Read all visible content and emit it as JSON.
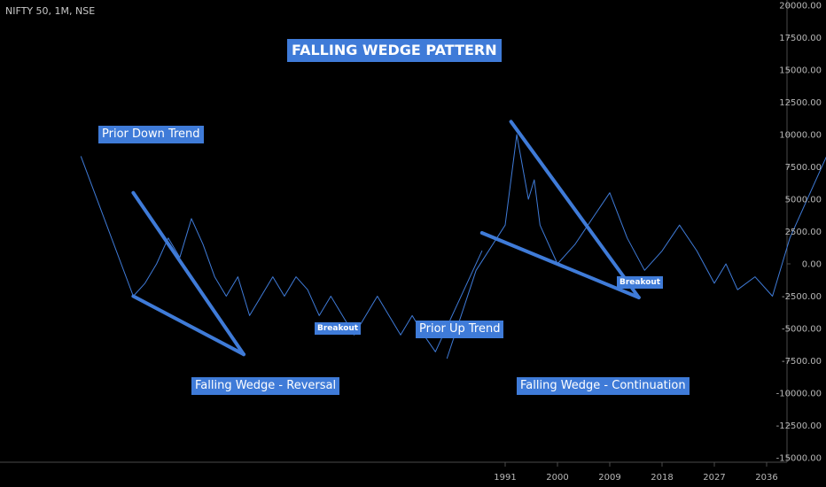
{
  "header": {
    "symbol": "NIFTY 50, 1M, NSE"
  },
  "annotations": {
    "title": "FALLING WEDGE PATTERN",
    "prior_down": "Prior Down Trend",
    "prior_up": "Prior Up Trend",
    "breakout_left": "Breakout",
    "breakout_right": "Breakout",
    "reversal": "Falling Wedge - Reversal",
    "continuation": "Falling Wedge - Continuation"
  },
  "colors": {
    "background": "#000000",
    "line": "#3f7bd8",
    "label_bg": "#3f7bd8",
    "axis_text": "#b8b8b8"
  },
  "chart_data": {
    "type": "line",
    "title": "FALLING WEDGE PATTERN",
    "ylim": [
      -15000,
      20000
    ],
    "y_ticks": [
      "20000.00",
      "17500.00",
      "15000.00",
      "12500.00",
      "10000.00",
      "7500.00",
      "5000.00",
      "2500.00",
      "0.00",
      "-2500.00",
      "-5000.00",
      "-7500.00",
      "-10000.00",
      "-12500.00",
      "-15000.00"
    ],
    "x_ticks": [
      "1991",
      "2000",
      "2009",
      "2018",
      "2027",
      "2036"
    ],
    "series": [
      {
        "points": [
          [
            -73,
            8300
          ],
          [
            -64,
            -2500
          ],
          [
            -62,
            -1500
          ],
          [
            -60,
            0
          ],
          [
            -58,
            2000
          ],
          [
            -56,
            500
          ],
          [
            -54,
            3500
          ],
          [
            -52,
            1500
          ],
          [
            -50,
            -1000
          ],
          [
            -48,
            -2500
          ],
          [
            -46,
            -1000
          ],
          [
            -44,
            -4000
          ],
          [
            -42,
            -2500
          ],
          [
            -40,
            -1000
          ],
          [
            -38,
            -2500
          ],
          [
            -36,
            -1000
          ],
          [
            -34,
            -2000
          ],
          [
            -32,
            -4000
          ],
          [
            -30,
            -2500
          ],
          [
            -28,
            -4000
          ],
          [
            -26,
            -5500
          ],
          [
            -24,
            -4000
          ],
          [
            -22,
            -2500
          ],
          [
            -20,
            -4000
          ],
          [
            -18,
            -5500
          ],
          [
            -16,
            -4000
          ],
          [
            -14,
            -5500
          ],
          [
            -12,
            -6800
          ],
          [
            -4,
            1000
          ]
        ]
      },
      {
        "points": [
          [
            -10,
            -7300
          ],
          [
            -5,
            -500
          ],
          [
            0,
            3000
          ],
          [
            2,
            10000
          ],
          [
            4,
            5000
          ],
          [
            5,
            6500
          ],
          [
            6,
            3000
          ],
          [
            9,
            0
          ],
          [
            12,
            1500
          ],
          [
            15,
            3500
          ],
          [
            18,
            5500
          ],
          [
            21,
            2000
          ],
          [
            24,
            -500
          ],
          [
            27,
            1000
          ],
          [
            30,
            3000
          ],
          [
            33,
            1000
          ],
          [
            36,
            -1500
          ],
          [
            38,
            0
          ],
          [
            40,
            -2000
          ],
          [
            43,
            -1000
          ],
          [
            46,
            -2500
          ],
          [
            49,
            2000
          ],
          [
            58,
            11000
          ]
        ]
      },
      {
        "points": [
          [
            -64,
            5500
          ],
          [
            -45,
            -7000
          ]
        ]
      },
      {
        "points": [
          [
            -64,
            -2500
          ],
          [
            -45,
            -7000
          ]
        ]
      },
      {
        "points": [
          [
            1,
            11000
          ],
          [
            23,
            -2600
          ]
        ]
      },
      {
        "points": [
          [
            -4,
            2400
          ],
          [
            23,
            -2600
          ]
        ]
      }
    ]
  }
}
